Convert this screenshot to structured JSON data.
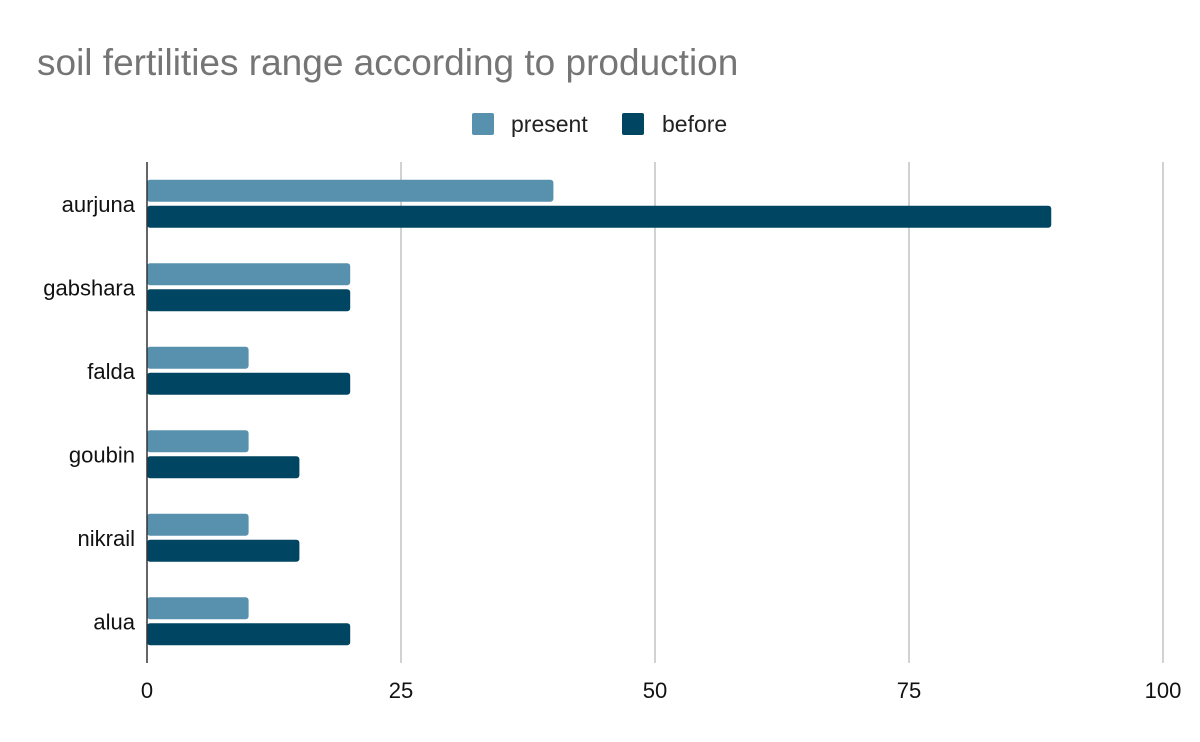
{
  "chart_data": {
    "type": "bar",
    "orientation": "horizontal",
    "title": "soil fertilities range according to production",
    "xlabel": "",
    "ylabel": "",
    "categories": [
      "aurjuna",
      "gabshara",
      "falda",
      "goubin",
      "nikrail",
      "alua"
    ],
    "series": [
      {
        "name": "present",
        "color": "#5891AD",
        "values": [
          40,
          20,
          10,
          10,
          10,
          10
        ]
      },
      {
        "name": "before",
        "color": "#004561",
        "values": [
          89,
          20,
          20,
          15,
          15,
          20
        ]
      }
    ],
    "xlim": [
      0,
      100
    ],
    "xticks": [
      "0",
      "25",
      "50",
      "75",
      "100"
    ],
    "xtick_values": [
      0,
      25,
      50,
      75,
      100
    ],
    "grid": true,
    "legend_position": "top-center"
  }
}
